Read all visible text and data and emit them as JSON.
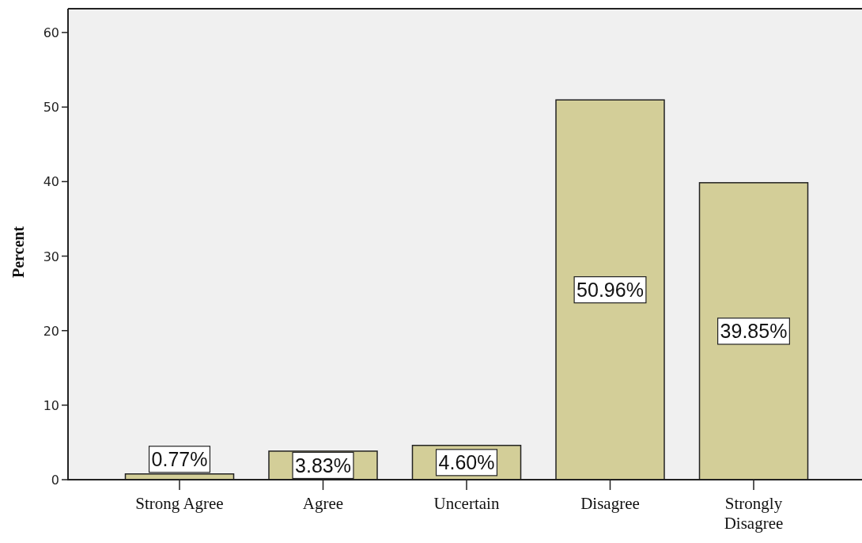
{
  "chart_data": {
    "type": "bar",
    "ylabel": "Percent",
    "categories": [
      "Strong Agree",
      "Agree",
      "Uncertain",
      "Disagree",
      "Strongly Disagree"
    ],
    "values": [
      0.77,
      3.83,
      4.6,
      50.96,
      39.85
    ],
    "value_labels": [
      "0.77%",
      "3.83%",
      "4.60%",
      "50.96%",
      "39.85%"
    ],
    "color": "#d3ce98",
    "ylim": [
      0,
      63.2
    ],
    "yticks": [
      0,
      10,
      20,
      30,
      40,
      50,
      60
    ]
  }
}
